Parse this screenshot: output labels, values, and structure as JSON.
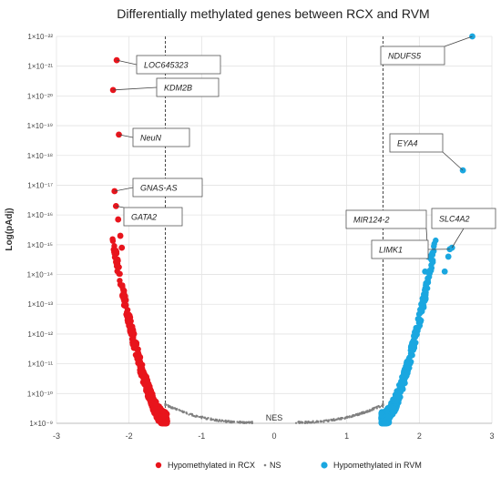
{
  "chart_data": {
    "type": "scatter",
    "title": "Differentially methylated genes between RCX and RVM",
    "xlabel": "",
    "ylabel": "Log(pAdj)",
    "xlim": [
      -3,
      3
    ],
    "x_ticks": [
      -3,
      -2,
      -1,
      0,
      1,
      2,
      3
    ],
    "y_scale": "log",
    "y_ticks": [
      "1×10⁻⁹",
      "1×10⁻¹⁰",
      "1×10⁻¹¹",
      "1×10⁻¹²",
      "1×10⁻¹³",
      "1×10⁻¹⁴",
      "1×10⁻¹⁵",
      "1×10⁻¹⁶",
      "1×10⁻¹⁷",
      "1×10⁻¹⁸",
      "1×10⁻¹⁹",
      "1×10⁻²⁰",
      "1×10⁻²¹",
      "1×10⁻²²"
    ],
    "y_exponent_range": [
      9,
      22
    ],
    "threshold_lines_x": [
      -1.5,
      1.5
    ],
    "grid": true,
    "nes_label": "NES",
    "legend_position": "bottom",
    "series": [
      {
        "name": "Hypomethylated in RCX",
        "color": "#e8141c",
        "points": [
          {
            "x": -2.17,
            "y_exp": 21.2
          },
          {
            "x": -2.22,
            "y_exp": 20.2
          },
          {
            "x": -2.14,
            "y_exp": 18.7
          },
          {
            "x": -2.2,
            "y_exp": 16.8
          },
          {
            "x": -2.18,
            "y_exp": 16.3
          },
          {
            "x": -2.15,
            "y_exp": 15.85
          },
          {
            "x": -2.12,
            "y_exp": 15.3
          },
          {
            "x": -2.1,
            "y_exp": 14.9
          }
        ]
      },
      {
        "name": "Hypomethylated in RVM",
        "color": "#1aa7e0",
        "points": [
          {
            "x": 2.73,
            "y_exp": 22.0
          },
          {
            "x": 2.6,
            "y_exp": 17.5
          },
          {
            "x": 2.45,
            "y_exp": 14.9
          },
          {
            "x": 2.42,
            "y_exp": 14.85
          },
          {
            "x": 2.4,
            "y_exp": 14.6
          },
          {
            "x": 2.35,
            "y_exp": 14.1
          },
          {
            "x": 2.12,
            "y_exp": 14.6
          },
          {
            "x": 2.08,
            "y_exp": 14.1
          }
        ]
      },
      {
        "name": "NS",
        "color": "#808080",
        "points": []
      }
    ],
    "annotations": [
      {
        "label": "LOC645323",
        "x": -2.17,
        "y_exp": 21.2
      },
      {
        "label": "KDM2B",
        "x": -2.22,
        "y_exp": 20.2
      },
      {
        "label": "NeuN",
        "x": -2.14,
        "y_exp": 18.7
      },
      {
        "label": "GNAS-AS",
        "x": -2.2,
        "y_exp": 16.8
      },
      {
        "label": "GATA2",
        "x": -2.18,
        "y_exp": 16.3
      },
      {
        "label": "NDUFS5",
        "x": 2.73,
        "y_exp": 22.0
      },
      {
        "label": "EYA4",
        "x": 2.6,
        "y_exp": 17.5
      },
      {
        "label": "MIR124-2",
        "x": 2.12,
        "y_exp": 14.6
      },
      {
        "label": "SLC4A2",
        "x": 2.45,
        "y_exp": 14.9
      },
      {
        "label": "LIMK1",
        "x": 2.42,
        "y_exp": 14.85
      }
    ]
  }
}
